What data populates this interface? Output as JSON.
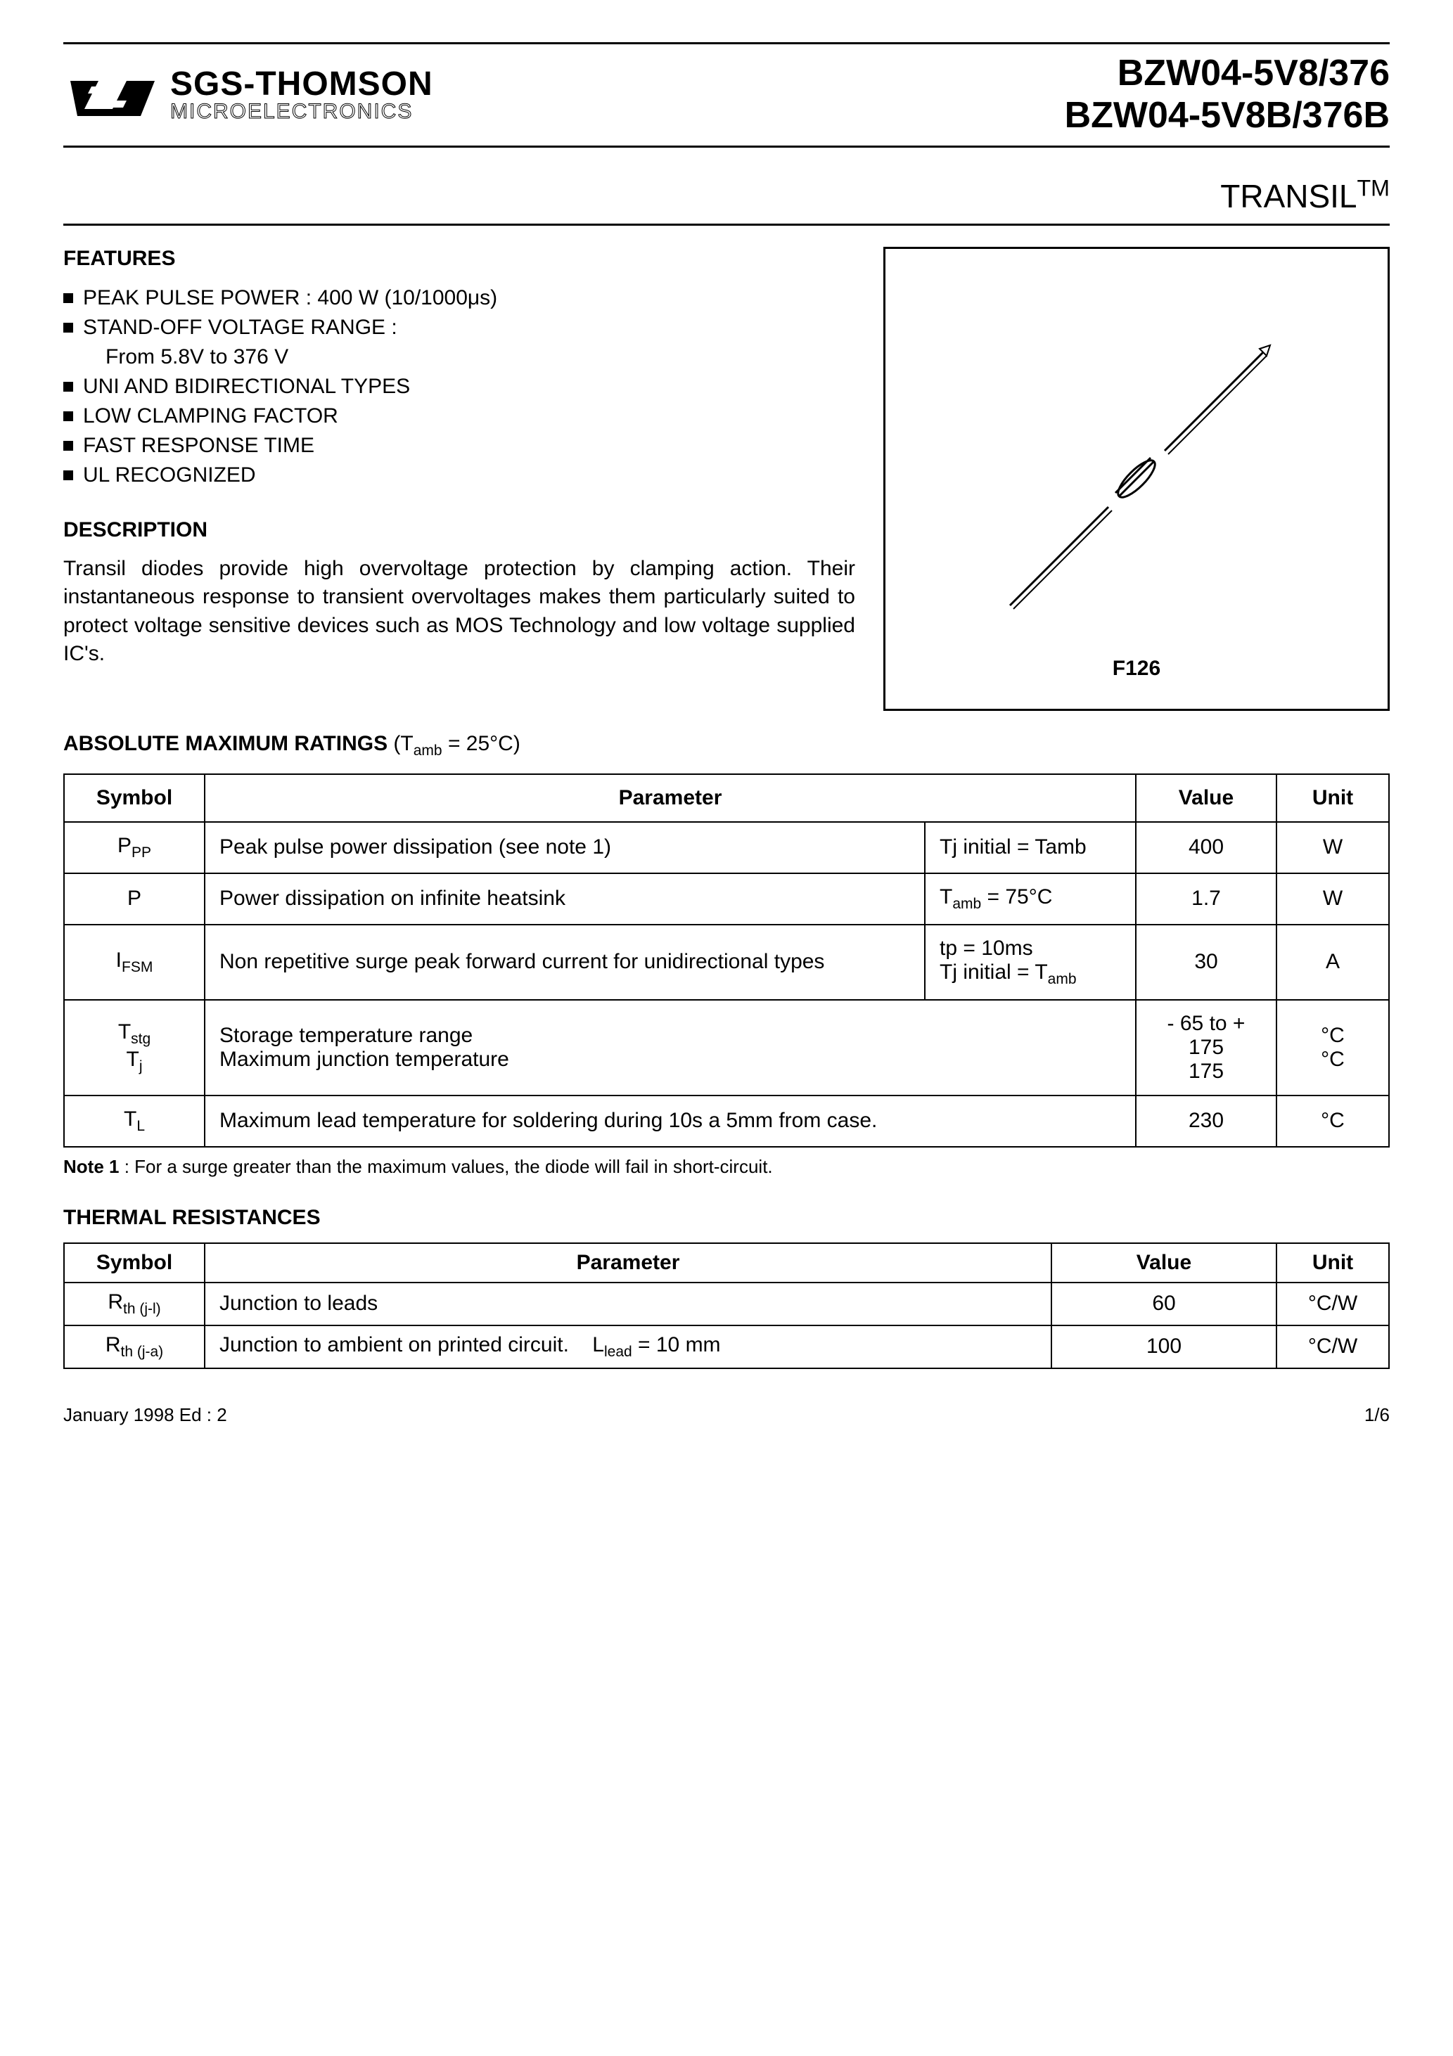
{
  "header": {
    "brand_main": "SGS-THOMSON",
    "brand_sub": "MICROELECTRONICS",
    "part_line1": "BZW04-5V8/376",
    "part_line2": "BZW04-5V8B/376B"
  },
  "subtitle": {
    "name": "TRANSIL",
    "tm": "TM"
  },
  "features": {
    "heading": "FEATURES",
    "items": [
      "PEAK PULSE POWER : 400 W  (10/1000μs)",
      "STAND-OFF VOLTAGE RANGE :",
      "From 5.8V to 376 V",
      "UNI AND BIDIRECTIONAL TYPES",
      "LOW CLAMPING FACTOR",
      "FAST RESPONSE TIME",
      "UL RECOGNIZED"
    ]
  },
  "description": {
    "heading": "DESCRIPTION",
    "text": "Transil diodes provide high overvoltage protection by clamping action. Their instantaneous response to transient overvoltages makes them particularly suited to protect voltage sensitive devices such as MOS Technology and low voltage supplied IC's."
  },
  "package": {
    "label": "F126"
  },
  "ratings": {
    "heading_bold": "ABSOLUTE MAXIMUM RATINGS",
    "heading_normal": " (Tamb = 25°C)",
    "columns": [
      "Symbol",
      "Parameter",
      "Value",
      "Unit"
    ],
    "rows": [
      {
        "symbol": "P<sub>PP</sub>",
        "param": "Peak pulse power dissipation (see note 1)",
        "cond": "Tj initial = Tamb",
        "value": "400",
        "unit": "W"
      },
      {
        "symbol": "P",
        "param": "Power dissipation on infinite heatsink",
        "cond": "T<sub>amb</sub> = 75°C",
        "value": "1.7",
        "unit": "W"
      },
      {
        "symbol": "I<sub>FSM</sub>",
        "param": "Non repetitive surge peak forward current for unidirectional types",
        "cond": "tp = 10ms<br>Tj initial = T<sub>amb</sub>",
        "value": "30",
        "unit": "A"
      },
      {
        "symbol": "T<sub>stg</sub><br>T<sub>j</sub>",
        "param": "Storage temperature range<br>Maximum junction temperature",
        "cond": "",
        "value": "- 65 to + 175<br>175",
        "unit": "°C<br>°C"
      },
      {
        "symbol": "T<sub>L</sub>",
        "param": "Maximum lead temperature for soldering during 10s a 5mm from case.",
        "cond": "",
        "value": "230",
        "unit": "°C"
      }
    ]
  },
  "note": {
    "bold": "Note 1",
    "text": " : For a surge greater than the maximum values, the diode will fail in short-circuit."
  },
  "thermal": {
    "heading": "THERMAL RESISTANCES",
    "columns": [
      "Symbol",
      "Parameter",
      "Value",
      "Unit"
    ],
    "rows": [
      {
        "symbol": "R<sub>th (j-l)</sub>",
        "param": "Junction to leads",
        "value": "60",
        "unit": "°C/W"
      },
      {
        "symbol": "R<sub>th (j-a)</sub>",
        "param": "Junction to ambient on printed circuit.&nbsp;&nbsp;&nbsp;&nbsp;L<sub>lead</sub> = 10 mm",
        "value": "100",
        "unit": "°C/W"
      }
    ]
  },
  "footer": {
    "left": "January 1998  Ed : 2",
    "right": "1/6"
  },
  "colors": {
    "text": "#000000",
    "background": "#ffffff",
    "border": "#000000"
  }
}
